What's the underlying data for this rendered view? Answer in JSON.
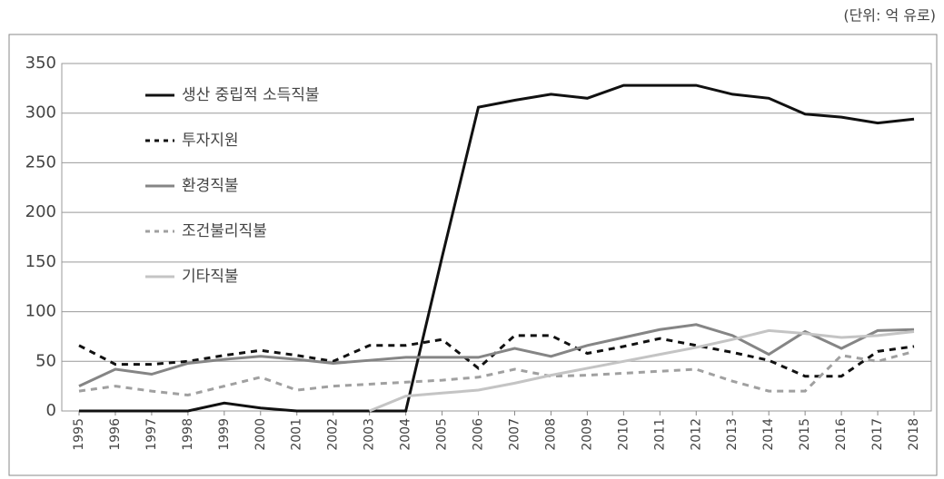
{
  "chart_data": {
    "type": "line",
    "unit": "(단위: 억 유로)",
    "categories": [
      "1995",
      "1996",
      "1997",
      "1998",
      "1999",
      "2000",
      "2001",
      "2002",
      "2003",
      "2004",
      "2005",
      "2006",
      "2007",
      "2008",
      "2009",
      "2010",
      "2011",
      "2012",
      "2013",
      "2014",
      "2015",
      "2016",
      "2017",
      "2018"
    ],
    "series": [
      {
        "name": "생산 중립적 소득직불",
        "color": "#111111",
        "dashed": false,
        "values": [
          0,
          0,
          0,
          0,
          8,
          3,
          0,
          0,
          0,
          0,
          155,
          306,
          313,
          319,
          315,
          328,
          328,
          328,
          319,
          315,
          299,
          296,
          290,
          294
        ]
      },
      {
        "name": "투자지원",
        "color": "#111111",
        "dashed": true,
        "values": [
          66,
          47,
          47,
          50,
          56,
          61,
          56,
          50,
          66,
          66,
          72,
          43,
          76,
          76,
          58,
          65,
          73,
          66,
          59,
          51,
          35,
          35,
          60,
          65
        ]
      },
      {
        "name": "환경직불",
        "color": "#858585",
        "dashed": false,
        "values": [
          25,
          42,
          37,
          48,
          52,
          55,
          52,
          48,
          51,
          54,
          54,
          54,
          63,
          55,
          66,
          74,
          82,
          87,
          76,
          57,
          80,
          63,
          81,
          82
        ]
      },
      {
        "name": "조건불리직불",
        "color": "#a0a0a0",
        "dashed": true,
        "values": [
          20,
          25,
          20,
          16,
          25,
          34,
          21,
          25,
          27,
          29,
          31,
          34,
          42,
          35,
          36,
          38,
          40,
          42,
          30,
          20,
          20,
          56,
          50,
          60
        ]
      },
      {
        "name": "기타직불",
        "color": "#c4c4c4",
        "dashed": false,
        "values": [
          null,
          null,
          null,
          null,
          null,
          null,
          null,
          null,
          0,
          15,
          18,
          21,
          28,
          36,
          43,
          50,
          57,
          64,
          72,
          81,
          78,
          74,
          76,
          80
        ]
      }
    ],
    "ylim": [
      0,
      350
    ],
    "yticks": [
      0,
      50,
      100,
      150,
      200,
      250,
      300,
      350
    ],
    "grid": true
  }
}
